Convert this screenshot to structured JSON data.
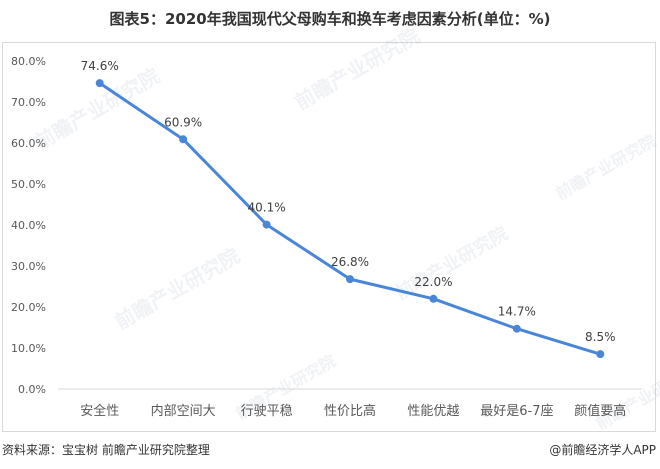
{
  "title": "图表5：2020年我国现代父母购车和换车考虑因素分析(单位：%)",
  "source": "资料来源：宝宝树 前瞻产业研究院整理",
  "brand": "@前瞻经济学人APP",
  "watermark": "前瞻产业研究院",
  "chart_data": {
    "type": "line",
    "categories": [
      "安全性",
      "内部空间大",
      "行驶平稳",
      "性价比高",
      "性能优越",
      "最好是6-7座",
      "颜值要高"
    ],
    "values": [
      74.6,
      60.9,
      40.1,
      26.8,
      22.0,
      14.7,
      8.5
    ],
    "value_labels": [
      "74.6%",
      "60.9%",
      "40.1%",
      "26.8%",
      "22.0%",
      "14.7%",
      "8.5%"
    ],
    "ylim": [
      0,
      80
    ],
    "yticks": [
      0,
      10,
      20,
      30,
      40,
      50,
      60,
      70,
      80
    ],
    "ytick_labels": [
      "0.0%",
      "10.0%",
      "20.0%",
      "30.0%",
      "40.0%",
      "50.0%",
      "60.0%",
      "70.0%",
      "80.0%"
    ],
    "line_color": "#4a86d8",
    "grid": false,
    "legend": "none"
  }
}
